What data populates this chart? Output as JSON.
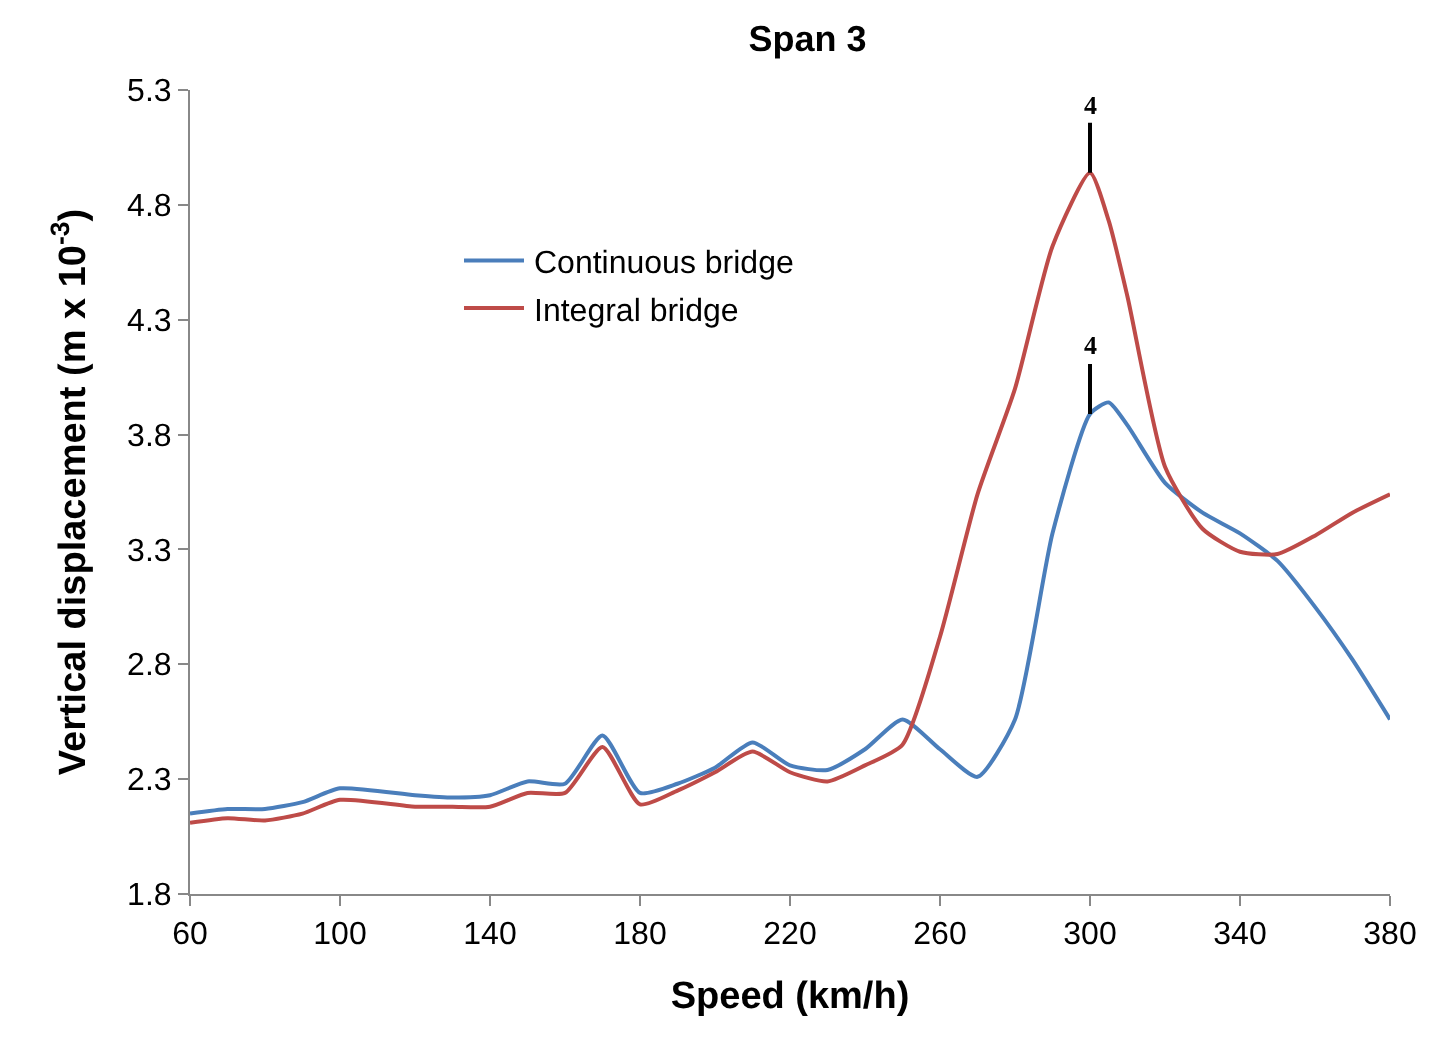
{
  "chart_data": {
    "type": "line",
    "title": "Span 3",
    "xlabel": "Speed (km/h)",
    "ylabel": "Vertical displacement (m x 10$^{-3}$)",
    "x": [
      60,
      70,
      80,
      90,
      100,
      120,
      130,
      140,
      150,
      160,
      170,
      180,
      190,
      200,
      210,
      220,
      230,
      240,
      250,
      260,
      270,
      280,
      290,
      300,
      305,
      310,
      320,
      330,
      340,
      350,
      360,
      370,
      380
    ],
    "series": [
      {
        "name": "Continuous bridge",
        "color": "#4a7ebb",
        "values": [
          2.15,
          2.17,
          2.17,
          2.2,
          2.26,
          2.23,
          2.22,
          2.23,
          2.29,
          2.28,
          2.49,
          2.24,
          2.28,
          2.35,
          2.46,
          2.36,
          2.34,
          2.43,
          2.56,
          2.43,
          2.31,
          2.56,
          3.37,
          3.89,
          3.94,
          3.84,
          3.59,
          3.46,
          3.37,
          3.25,
          3.05,
          2.82,
          2.56
        ]
      },
      {
        "name": "Integral bridge",
        "color": "#be4b48",
        "values": [
          2.11,
          2.13,
          2.12,
          2.15,
          2.21,
          2.18,
          2.18,
          2.18,
          2.24,
          2.24,
          2.44,
          2.19,
          2.25,
          2.33,
          2.42,
          2.33,
          2.29,
          2.36,
          2.45,
          2.92,
          3.54,
          4.0,
          4.62,
          4.94,
          4.73,
          4.4,
          3.66,
          3.39,
          3.29,
          3.28,
          3.36,
          3.46,
          3.54
        ]
      }
    ],
    "annotations": [
      {
        "text": "4",
        "x": 300,
        "y": 4.94
      },
      {
        "text": "4",
        "x": 300,
        "y": 3.89
      }
    ],
    "xlim": [
      60,
      380
    ],
    "xticks": [
      60,
      100,
      140,
      180,
      220,
      260,
      300,
      340,
      380
    ],
    "ylim": [
      1.8,
      5.3
    ],
    "yticks": [
      1.8,
      2.3,
      2.8,
      3.3,
      3.8,
      4.3,
      4.8,
      5.3
    ],
    "legend": "top left",
    "marker": "none",
    "line_style": "solid"
  }
}
